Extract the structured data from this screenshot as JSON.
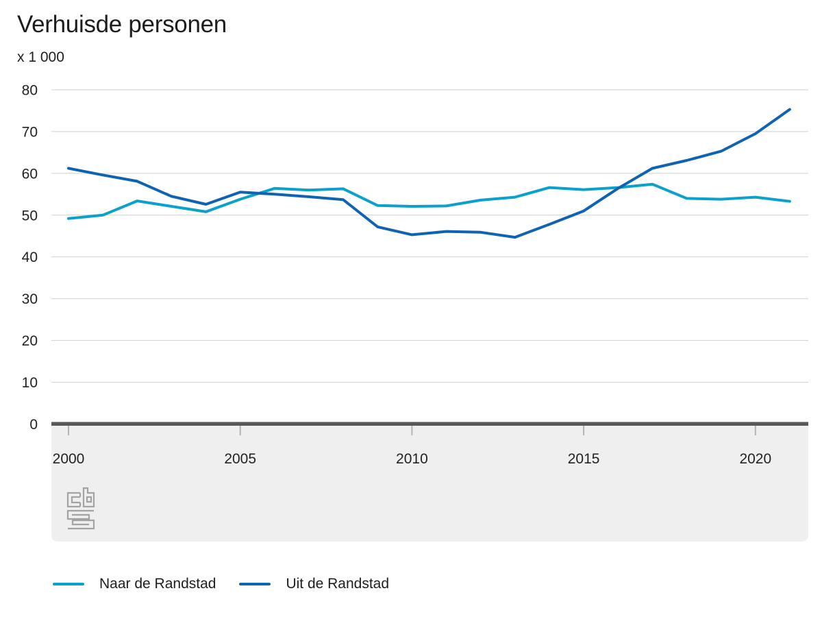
{
  "header": {
    "title": "Verhuisde personen",
    "unit_label": "x 1 000"
  },
  "colors": {
    "naar": "#0ba1cd",
    "uit": "#1063b2",
    "grid": "#cfcfcf",
    "axis_bar": "#59595b",
    "band": "#efefef",
    "tick": "#b3b3b3",
    "label": "#222222",
    "title_text": "#1d1d1d",
    "logo": "#a3a3a3"
  },
  "chart_data": {
    "type": "line",
    "title": "Verhuisde personen",
    "unit_label": "x 1 000",
    "xlabel": "",
    "ylabel": "x 1 000",
    "ylim": [
      0,
      80
    ],
    "yticks": [
      0,
      10,
      20,
      30,
      40,
      50,
      60,
      70,
      80
    ],
    "xticks": [
      2000,
      2005,
      2010,
      2015,
      2020
    ],
    "grid": "horizontal",
    "legend_position": "bottom",
    "x": [
      2000,
      2001,
      2002,
      2003,
      2004,
      2005,
      2006,
      2007,
      2008,
      2009,
      2010,
      2011,
      2012,
      2013,
      2014,
      2015,
      2016,
      2017,
      2018,
      2019,
      2020,
      2021
    ],
    "series": [
      {
        "name": "Naar de Randstad",
        "color_key": "naar",
        "values": [
          49.2,
          50.0,
          53.4,
          52.1,
          50.8,
          53.8,
          56.4,
          56.0,
          56.3,
          52.3,
          52.1,
          52.2,
          53.6,
          54.3,
          56.6,
          56.1,
          56.6,
          57.4,
          54.0,
          53.8,
          54.3,
          53.3
        ]
      },
      {
        "name": "Uit de Randstad",
        "color_key": "uit",
        "values": [
          61.2,
          59.6,
          58.1,
          54.5,
          52.6,
          55.5,
          55.0,
          54.4,
          53.7,
          47.2,
          45.3,
          46.1,
          45.9,
          44.7,
          47.8,
          51.0,
          56.4,
          61.2,
          63.1,
          65.3,
          69.5,
          75.3
        ]
      }
    ],
    "source_logo": "CBS"
  }
}
